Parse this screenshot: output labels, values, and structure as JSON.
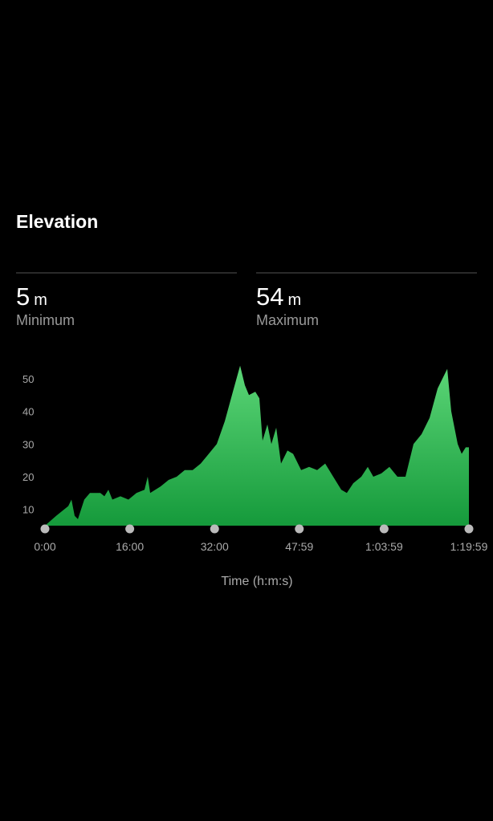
{
  "header": {
    "title": "Elevation"
  },
  "stats": [
    {
      "value": 5,
      "unit": "m",
      "label": "Minimum"
    },
    {
      "value": 54,
      "unit": "m",
      "label": "Maximum"
    }
  ],
  "chart_data": {
    "type": "area",
    "x": [
      0,
      127,
      264,
      300,
      336,
      373,
      445,
      509,
      627,
      673,
      718,
      763,
      854,
      945,
      1036,
      1127,
      1163,
      1191,
      1309,
      1400,
      1491,
      1582,
      1672,
      1763,
      1854,
      1945,
      2036,
      2127,
      2209,
      2263,
      2309,
      2381,
      2427,
      2463,
      2518,
      2563,
      2618,
      2672,
      2745,
      2809,
      2900,
      2990,
      3081,
      3172,
      3263,
      3354,
      3417,
      3490,
      3581,
      3654,
      3717,
      3808,
      3899,
      3990,
      4081,
      4172,
      4263,
      4354,
      4445,
      4554,
      4599,
      4672,
      4717,
      4763,
      4799
    ],
    "values": [
      5,
      8,
      11,
      13,
      8,
      7,
      13,
      15,
      15,
      14,
      16,
      13,
      14,
      13,
      15,
      16,
      20,
      15,
      17,
      19,
      20,
      22,
      22,
      24,
      27,
      30,
      37,
      46,
      54,
      48,
      45,
      46,
      44,
      31,
      36,
      30,
      35,
      24,
      28,
      27,
      22,
      23,
      22,
      24,
      20,
      16,
      15,
      18,
      20,
      23,
      20,
      21,
      23,
      20,
      20,
      30,
      33,
      38,
      47,
      53,
      40,
      30,
      27,
      29,
      29
    ],
    "colors": [
      "#5cd677",
      "#159a3b"
    ],
    "xlim": [
      0,
      4799
    ],
    "xticks": [
      {
        "value": 0,
        "label": "0:00"
      },
      {
        "value": 960,
        "label": "16:00"
      },
      {
        "value": 1920,
        "label": "32:00"
      },
      {
        "value": 2879,
        "label": "47:59"
      },
      {
        "value": 3839,
        "label": "1:03:59"
      },
      {
        "value": 4799,
        "label": "1:19:59"
      }
    ],
    "ylim": [
      5,
      55
    ],
    "yticks": [
      10,
      20,
      30,
      40,
      50
    ],
    "x_label": "Time (h:m:s)"
  }
}
